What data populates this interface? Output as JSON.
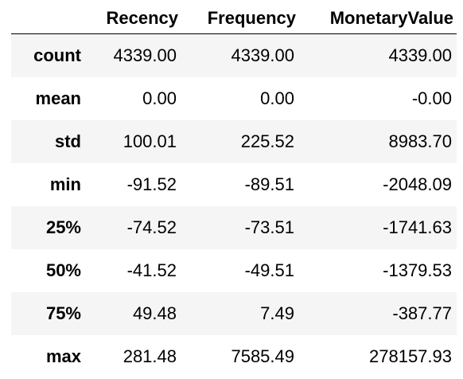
{
  "table": {
    "columns": [
      "",
      "Recency",
      "Frequency",
      "MonetaryValue"
    ],
    "rows": [
      {
        "index": "count",
        "values": [
          "4339.00",
          "4339.00",
          "4339.00"
        ]
      },
      {
        "index": "mean",
        "values": [
          "0.00",
          "0.00",
          "-0.00"
        ]
      },
      {
        "index": "std",
        "values": [
          "100.01",
          "225.52",
          "8983.70"
        ]
      },
      {
        "index": "min",
        "values": [
          "-91.52",
          "-89.51",
          "-2048.09"
        ]
      },
      {
        "index": "25%",
        "values": [
          "-74.52",
          "-73.51",
          "-1741.63"
        ]
      },
      {
        "index": "50%",
        "values": [
          "-41.52",
          "-49.51",
          "-1379.53"
        ]
      },
      {
        "index": "75%",
        "values": [
          "49.48",
          "7.49",
          "-387.77"
        ]
      },
      {
        "index": "max",
        "values": [
          "281.48",
          "7585.49",
          "278157.93"
        ]
      }
    ]
  }
}
